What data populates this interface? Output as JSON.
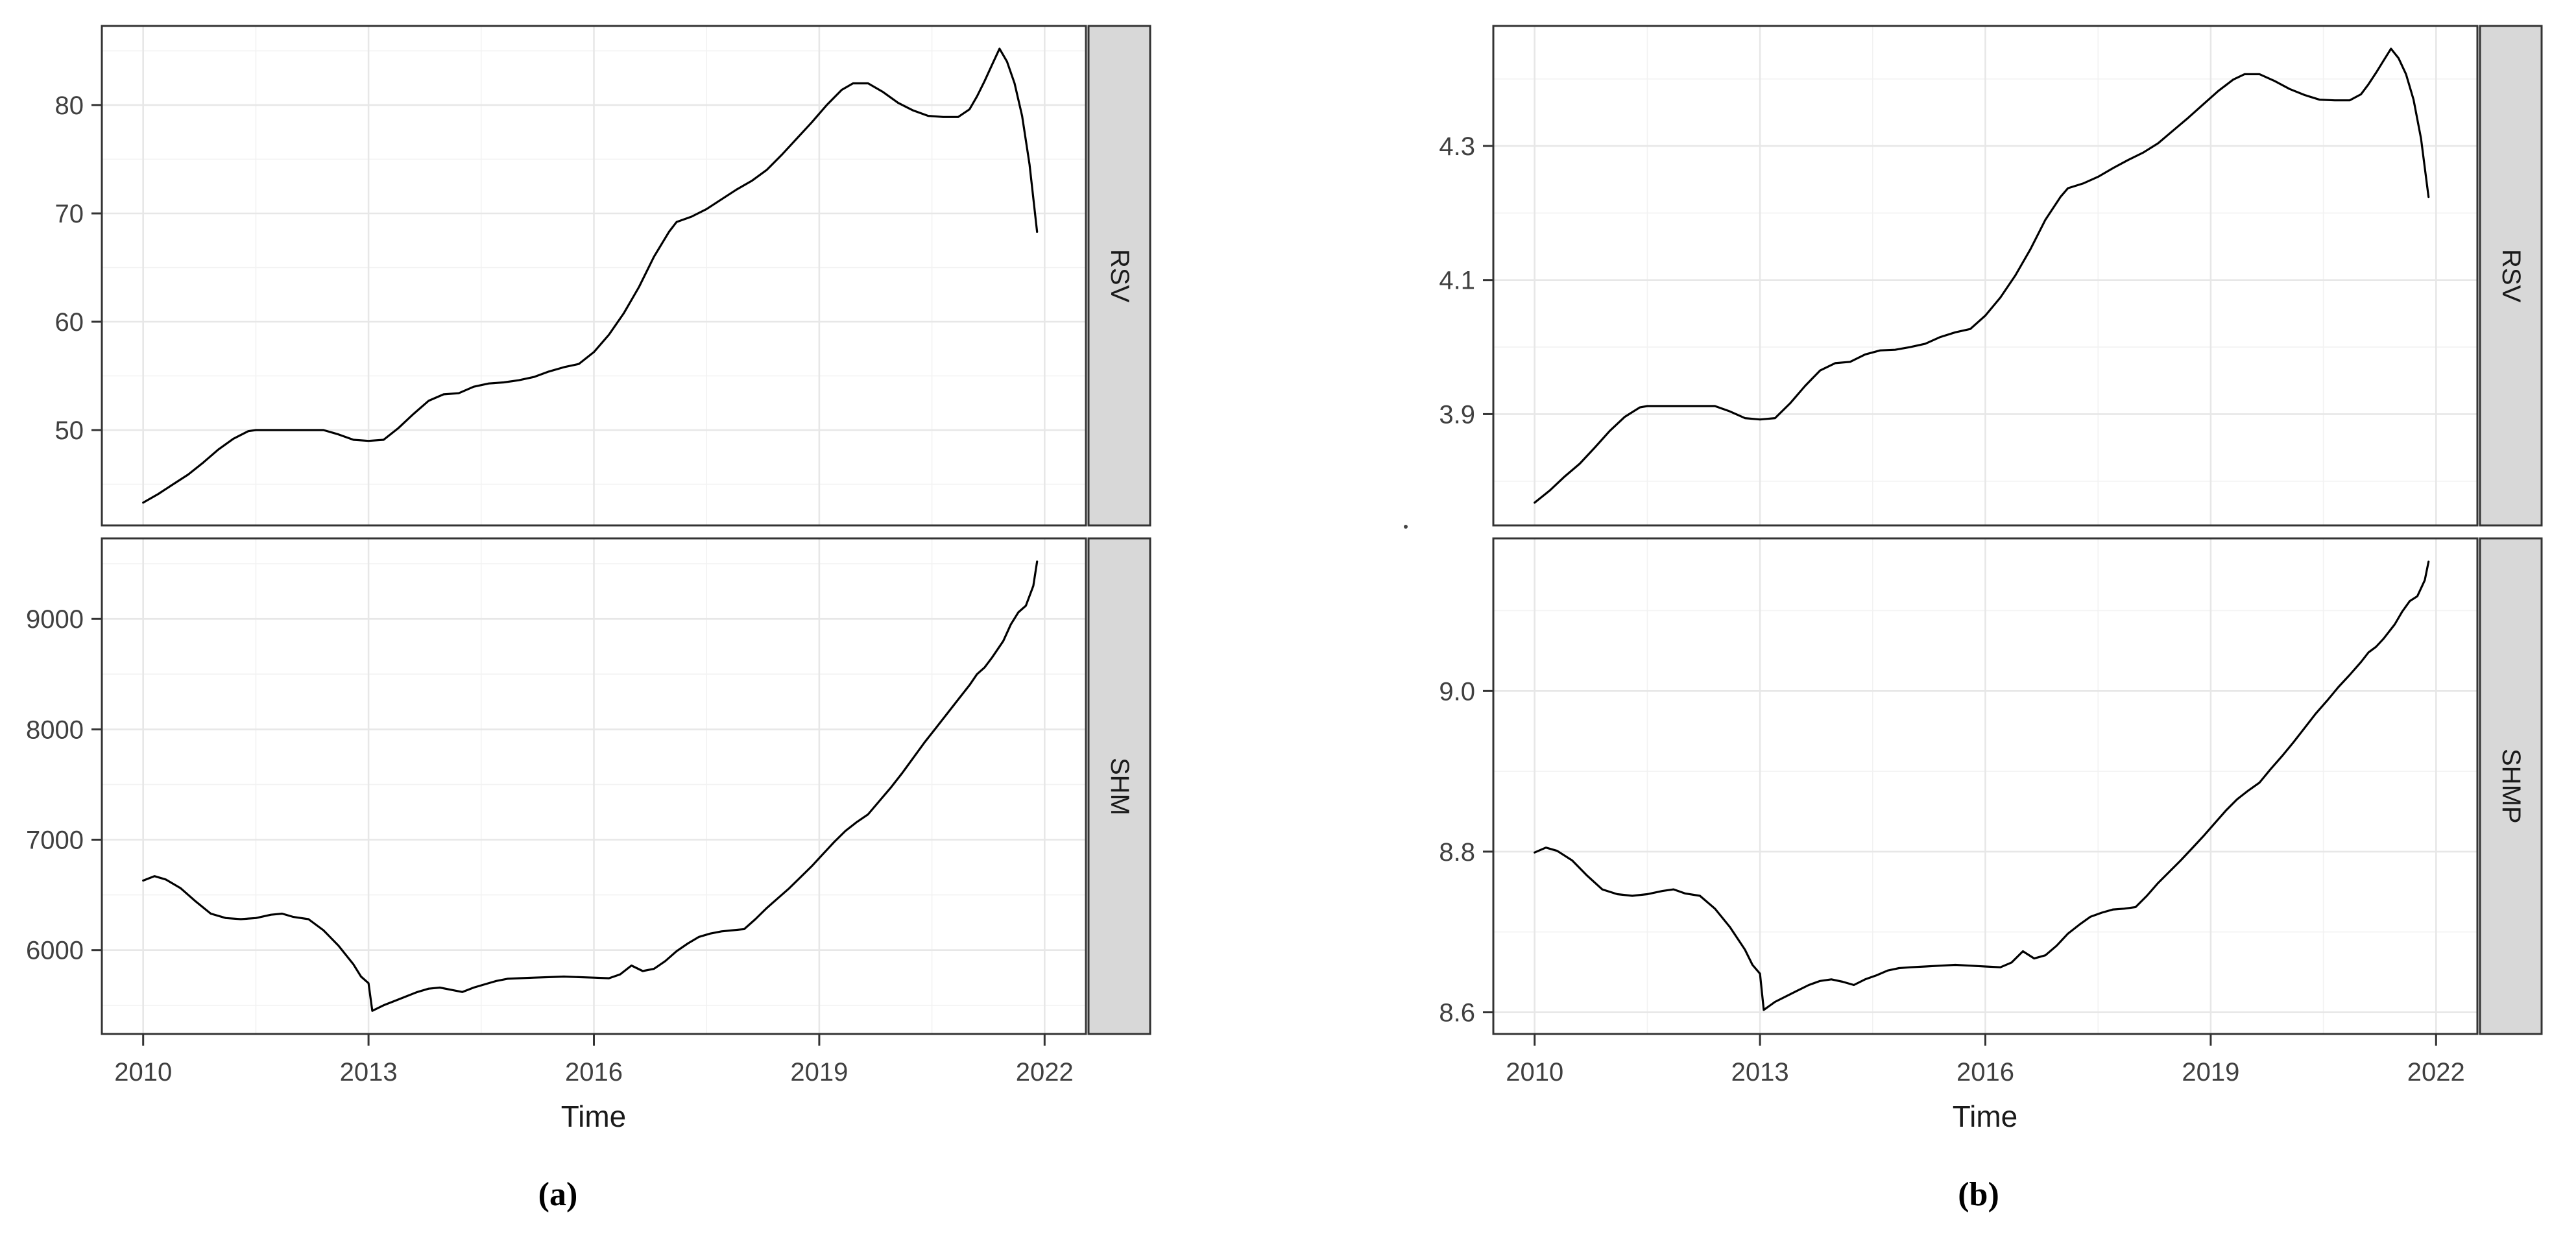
{
  "style": {
    "line_color": "#000000",
    "grid_major_color": "#e7e7e7",
    "grid_minor_color": "#f2f2f2",
    "panel_border_color": "#333333",
    "strip_fill": "#d8d8d8",
    "axis_text_color": "#404040",
    "background": "#ffffff"
  },
  "chart_data": [
    {
      "type": "line",
      "label": "(a)",
      "xlabel": "Time",
      "legend": "none",
      "grid": "on",
      "xlim": [
        2009.45,
        2022.55
      ],
      "x_ticks": [
        2010,
        2013,
        2016,
        2019,
        2022
      ],
      "x_tick_labels": [
        "2010",
        "2013",
        "2016",
        "2019",
        "2022"
      ],
      "x_minor": [
        2011.5,
        2014.5,
        2017.5,
        2020.5
      ],
      "panels": [
        {
          "strip": "RSV",
          "ylim": [
            41.2,
            87.3
          ],
          "y_ticks": [
            50,
            60,
            70,
            80
          ],
          "y_tick_labels": [
            "50",
            "60",
            "70",
            "80"
          ],
          "y_minor": [
            45,
            55,
            65,
            75,
            85
          ],
          "x": [
            2010.0,
            2010.2,
            2010.4,
            2010.6,
            2010.8,
            2011.0,
            2011.2,
            2011.4,
            2011.5,
            2012.4,
            2012.6,
            2012.8,
            2013.0,
            2013.2,
            2013.4,
            2013.6,
            2013.8,
            2014.0,
            2014.2,
            2014.4,
            2014.6,
            2014.8,
            2015.0,
            2015.2,
            2015.4,
            2015.6,
            2015.8,
            2016.0,
            2016.2,
            2016.4,
            2016.6,
            2016.8,
            2017.0,
            2017.1,
            2017.3,
            2017.5,
            2017.7,
            2017.9,
            2018.1,
            2018.3,
            2018.5,
            2018.7,
            2018.9,
            2019.1,
            2019.3,
            2019.45,
            2019.65,
            2019.85,
            2020.05,
            2020.25,
            2020.45,
            2020.65,
            2020.85,
            2021.0,
            2021.1,
            2021.2,
            2021.3,
            2021.4,
            2021.5,
            2021.6,
            2021.7,
            2021.8,
            2021.9
          ],
          "y": [
            43.3,
            44.1,
            45.0,
            45.9,
            47.0,
            48.2,
            49.2,
            49.9,
            50.0,
            50.0,
            49.6,
            49.1,
            49.0,
            49.1,
            50.2,
            51.5,
            52.7,
            53.3,
            53.4,
            54.0,
            54.3,
            54.4,
            54.6,
            54.9,
            55.4,
            55.8,
            56.1,
            57.2,
            58.8,
            60.8,
            63.2,
            66.0,
            68.3,
            69.2,
            69.7,
            70.4,
            71.3,
            72.2,
            73.0,
            74.0,
            75.4,
            76.9,
            78.4,
            80.0,
            81.4,
            82.0,
            82.0,
            81.2,
            80.2,
            79.5,
            79.0,
            78.9,
            78.9,
            79.6,
            80.8,
            82.2,
            83.7,
            85.2,
            84.0,
            82.0,
            79.0,
            74.5,
            68.3
          ]
        },
        {
          "strip": "SHM",
          "ylim": [
            5240,
            9730
          ],
          "y_ticks": [
            6000,
            7000,
            8000,
            9000
          ],
          "y_tick_labels": [
            "6000",
            "7000",
            "8000",
            "9000"
          ],
          "y_minor": [
            5500,
            6500,
            7500,
            8500,
            9500
          ],
          "x": [
            2010.0,
            2010.15,
            2010.3,
            2010.5,
            2010.7,
            2010.9,
            2011.1,
            2011.3,
            2011.5,
            2011.7,
            2011.85,
            2012.0,
            2012.2,
            2012.4,
            2012.6,
            2012.8,
            2012.9,
            2013.0,
            2013.05,
            2013.2,
            2013.35,
            2013.5,
            2013.65,
            2013.8,
            2013.95,
            2014.1,
            2014.25,
            2014.4,
            2014.55,
            2014.7,
            2014.85,
            2015.0,
            2015.2,
            2015.4,
            2015.6,
            2015.8,
            2016.0,
            2016.2,
            2016.35,
            2016.5,
            2016.65,
            2016.8,
            2016.95,
            2017.1,
            2017.25,
            2017.4,
            2017.55,
            2017.7,
            2017.85,
            2018.0,
            2018.15,
            2018.3,
            2018.45,
            2018.6,
            2018.75,
            2018.9,
            2019.05,
            2019.2,
            2019.35,
            2019.5,
            2019.65,
            2019.8,
            2019.95,
            2020.1,
            2020.25,
            2020.4,
            2020.55,
            2020.7,
            2020.85,
            2021.0,
            2021.1,
            2021.2,
            2021.3,
            2021.45,
            2021.55,
            2021.65,
            2021.75,
            2021.85,
            2021.9
          ],
          "y": [
            6630,
            6670,
            6640,
            6560,
            6440,
            6330,
            6290,
            6280,
            6290,
            6320,
            6330,
            6300,
            6280,
            6180,
            6040,
            5870,
            5760,
            5700,
            5450,
            5500,
            5540,
            5580,
            5620,
            5650,
            5660,
            5640,
            5620,
            5660,
            5690,
            5720,
            5740,
            5745,
            5750,
            5755,
            5760,
            5755,
            5750,
            5745,
            5780,
            5860,
            5810,
            5830,
            5900,
            5990,
            6060,
            6120,
            6150,
            6170,
            6180,
            6190,
            6280,
            6380,
            6470,
            6560,
            6660,
            6760,
            6870,
            6980,
            7080,
            7160,
            7230,
            7350,
            7470,
            7600,
            7740,
            7880,
            8010,
            8140,
            8270,
            8400,
            8500,
            8560,
            8650,
            8800,
            8950,
            9060,
            9120,
            9300,
            9520
          ]
        }
      ]
    },
    {
      "type": "line",
      "label": "(b)",
      "xlabel": "Time",
      "legend": "none",
      "grid": "on",
      "xlim": [
        2009.45,
        2022.55
      ],
      "x_ticks": [
        2010,
        2013,
        2016,
        2019,
        2022
      ],
      "x_tick_labels": [
        "2010",
        "2013",
        "2016",
        "2019",
        "2022"
      ],
      "x_minor": [
        2011.5,
        2014.5,
        2017.5,
        2020.5
      ],
      "panels": [
        {
          "strip": "RSV",
          "ylim": [
            3.734,
            4.479
          ],
          "y_ticks": [
            3.9,
            4.1,
            4.3
          ],
          "y_tick_labels": [
            "3.9",
            "4.1",
            "4.3"
          ],
          "y_minor": [
            3.8,
            4.0,
            4.2,
            4.4
          ],
          "x": [
            2010.0,
            2010.2,
            2010.4,
            2010.6,
            2010.8,
            2011.0,
            2011.2,
            2011.4,
            2011.5,
            2012.4,
            2012.6,
            2012.8,
            2013.0,
            2013.2,
            2013.4,
            2013.6,
            2013.8,
            2014.0,
            2014.2,
            2014.4,
            2014.6,
            2014.8,
            2015.0,
            2015.2,
            2015.4,
            2015.6,
            2015.8,
            2016.0,
            2016.2,
            2016.4,
            2016.6,
            2016.8,
            2017.0,
            2017.1,
            2017.3,
            2017.5,
            2017.7,
            2017.9,
            2018.1,
            2018.3,
            2018.5,
            2018.7,
            2018.9,
            2019.1,
            2019.3,
            2019.45,
            2019.65,
            2019.85,
            2020.05,
            2020.25,
            2020.45,
            2020.65,
            2020.85,
            2021.0,
            2021.1,
            2021.2,
            2021.3,
            2021.4,
            2021.5,
            2021.6,
            2021.7,
            2021.8,
            2021.9
          ],
          "y": [
            3.768,
            3.786,
            3.807,
            3.826,
            3.85,
            3.875,
            3.896,
            3.91,
            3.912,
            3.912,
            3.904,
            3.894,
            3.892,
            3.894,
            3.916,
            3.942,
            3.965,
            3.976,
            3.978,
            3.989,
            3.995,
            3.996,
            4.0,
            4.005,
            4.015,
            4.022,
            4.027,
            4.047,
            4.074,
            4.107,
            4.146,
            4.19,
            4.224,
            4.237,
            4.244,
            4.254,
            4.267,
            4.279,
            4.29,
            4.304,
            4.323,
            4.342,
            4.362,
            4.382,
            4.399,
            4.407,
            4.407,
            4.397,
            4.385,
            4.376,
            4.369,
            4.368,
            4.368,
            4.377,
            4.392,
            4.409,
            4.427,
            4.445,
            4.431,
            4.407,
            4.369,
            4.311,
            4.224
          ]
        },
        {
          "strip": "SHMP",
          "ylim": [
            8.573,
            9.19
          ],
          "y_ticks": [
            8.6,
            8.8,
            9.0
          ],
          "y_tick_labels": [
            "8.6",
            "8.8",
            "9.0"
          ],
          "y_minor": [
            8.7,
            8.9,
            9.1
          ],
          "x": [
            2010.0,
            2010.15,
            2010.3,
            2010.5,
            2010.7,
            2010.9,
            2011.1,
            2011.3,
            2011.5,
            2011.7,
            2011.85,
            2012.0,
            2012.2,
            2012.4,
            2012.6,
            2012.8,
            2012.9,
            2013.0,
            2013.05,
            2013.2,
            2013.35,
            2013.5,
            2013.65,
            2013.8,
            2013.95,
            2014.1,
            2014.25,
            2014.4,
            2014.55,
            2014.7,
            2014.85,
            2015.0,
            2015.2,
            2015.4,
            2015.6,
            2015.8,
            2016.0,
            2016.2,
            2016.35,
            2016.5,
            2016.65,
            2016.8,
            2016.95,
            2017.1,
            2017.25,
            2017.4,
            2017.55,
            2017.7,
            2017.85,
            2018.0,
            2018.15,
            2018.3,
            2018.45,
            2018.6,
            2018.75,
            2018.9,
            2019.05,
            2019.2,
            2019.35,
            2019.5,
            2019.65,
            2019.8,
            2019.95,
            2020.1,
            2020.25,
            2020.4,
            2020.55,
            2020.7,
            2020.85,
            2021.0,
            2021.1,
            2021.2,
            2021.3,
            2021.45,
            2021.55,
            2021.65,
            2021.75,
            2021.85,
            2021.9
          ],
          "y": [
            8.799,
            8.805,
            8.801,
            8.789,
            8.77,
            8.753,
            8.747,
            8.745,
            8.747,
            8.751,
            8.753,
            8.748,
            8.745,
            8.729,
            8.706,
            8.678,
            8.659,
            8.648,
            8.603,
            8.613,
            8.62,
            8.627,
            8.634,
            8.639,
            8.641,
            8.638,
            8.634,
            8.641,
            8.646,
            8.652,
            8.655,
            8.656,
            8.657,
            8.658,
            8.659,
            8.658,
            8.657,
            8.656,
            8.662,
            8.676,
            8.667,
            8.671,
            8.683,
            8.698,
            8.709,
            8.719,
            8.724,
            8.728,
            8.729,
            8.731,
            8.745,
            8.761,
            8.775,
            8.789,
            8.804,
            8.819,
            8.835,
            8.851,
            8.865,
            8.876,
            8.886,
            8.903,
            8.919,
            8.936,
            8.954,
            8.972,
            8.988,
            9.005,
            9.02,
            9.036,
            9.048,
            9.055,
            9.065,
            9.083,
            9.099,
            9.112,
            9.118,
            9.138,
            9.161
          ]
        }
      ]
    }
  ]
}
